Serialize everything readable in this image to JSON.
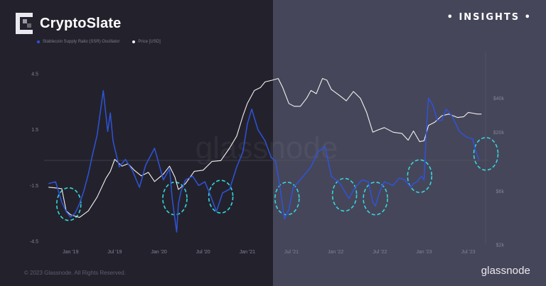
{
  "header": {
    "brand": "CryptoSlate",
    "badge": "• INSIGHTS •"
  },
  "footer": {
    "copyright": "© 2023 Glassnode. All Rights Reserved.",
    "brand": "glassnode"
  },
  "watermark": "glassnode",
  "colors": {
    "oscillator": "#2f53d8",
    "price": "#f2f2f2",
    "circle": "#35d6dc"
  },
  "chart_data": {
    "type": "line",
    "legend": [
      "Stablecoin Supply Ratio (SSR) Oscillator",
      "Price [USD]"
    ],
    "x_tick_labels": [
      "Jan '19",
      "Jul '19",
      "Jan '20",
      "Jul '20",
      "Jan '21",
      "Jul '21",
      "Jan '22",
      "Jul '22",
      "Jan '23",
      "Jul '23"
    ],
    "y_left_tick_labels": [
      "4.5",
      "1.5",
      "-1.5",
      "-4.5"
    ],
    "y_right_tick_labels": [
      "$40k",
      "$20k",
      "$6k",
      "$2k"
    ],
    "ylim_left": [
      -4.5,
      4.5
    ],
    "series": [
      {
        "name": "Stablecoin Supply Ratio (SSR) Oscillator",
        "axis": "left",
        "x": [
          2018.75,
          2018.83,
          2018.9,
          2018.95,
          2019.0,
          2019.05,
          2019.1,
          2019.15,
          2019.2,
          2019.25,
          2019.3,
          2019.37,
          2019.42,
          2019.45,
          2019.48,
          2019.5,
          2019.55,
          2019.62,
          2019.7,
          2019.78,
          2019.85,
          2019.95,
          2020.05,
          2020.12,
          2020.15,
          2020.2,
          2020.22,
          2020.25,
          2020.3,
          2020.38,
          2020.45,
          2020.52,
          2020.58,
          2020.65,
          2020.72,
          2020.8,
          2020.88,
          2020.95,
          2021.0,
          2021.05,
          2021.12,
          2021.2,
          2021.27,
          2021.32,
          2021.37,
          2021.42,
          2021.47,
          2021.52,
          2021.58,
          2021.65,
          2021.72,
          2021.8,
          2021.88,
          2021.95,
          2022.05,
          2022.1,
          2022.15,
          2022.22,
          2022.3,
          2022.37,
          2022.42,
          2022.45,
          2022.5,
          2022.55,
          2022.65,
          2022.72,
          2022.78,
          2022.85,
          2022.88,
          2022.92,
          2022.97,
          2023.0,
          2023.03,
          2023.05,
          2023.1,
          2023.15,
          2023.2,
          2023.25,
          2023.32,
          2023.4,
          2023.48,
          2023.55,
          2023.58,
          2023.62
        ],
        "y": [
          -1.4,
          -1.3,
          -2.4,
          -2.9,
          -3.2,
          -3.0,
          -2.5,
          -1.8,
          -0.9,
          0.2,
          1.2,
          3.6,
          1.4,
          2.4,
          0.9,
          0.5,
          -0.5,
          -0.1,
          -0.7,
          -1.6,
          -0.4,
          0.5,
          -1.2,
          -0.6,
          -2.2,
          -4.0,
          -2.5,
          -1.8,
          -1.2,
          -1.0,
          -1.5,
          -1.3,
          -2.0,
          -2.9,
          -1.9,
          -1.7,
          -0.5,
          0.3,
          1.8,
          2.6,
          1.5,
          0.9,
          0.0,
          -0.2,
          -1.6,
          -3.3,
          -2.8,
          -1.6,
          -1.3,
          -0.9,
          -0.5,
          0.3,
          0.6,
          -1.0,
          -1.4,
          -1.8,
          -2.2,
          -1.6,
          -1.2,
          -1.3,
          -2.4,
          -2.6,
          -1.8,
          -1.3,
          -1.5,
          -1.1,
          -1.2,
          -1.6,
          -1.4,
          -1.3,
          -1.0,
          -1.2,
          1.8,
          3.2,
          2.8,
          2.0,
          2.0,
          2.6,
          2.2,
          1.4,
          1.1,
          1.0,
          0.4,
          -0.1
        ]
      },
      {
        "name": "Price [USD]",
        "axis": "right",
        "x": [
          2018.75,
          2018.83,
          2018.9,
          2018.95,
          2019.0,
          2019.1,
          2019.2,
          2019.3,
          2019.4,
          2019.45,
          2019.5,
          2019.58,
          2019.65,
          2019.72,
          2019.8,
          2019.88,
          2019.95,
          2020.05,
          2020.12,
          2020.18,
          2020.22,
          2020.3,
          2020.4,
          2020.5,
          2020.6,
          2020.7,
          2020.8,
          2020.88,
          2020.95,
          2021.0,
          2021.08,
          2021.15,
          2021.2,
          2021.28,
          2021.35,
          2021.4,
          2021.47,
          2021.53,
          2021.6,
          2021.67,
          2021.72,
          2021.78,
          2021.85,
          2021.9,
          2021.95,
          2022.05,
          2022.12,
          2022.2,
          2022.28,
          2022.35,
          2022.42,
          2022.48,
          2022.55,
          2022.65,
          2022.75,
          2022.82,
          2022.88,
          2022.95,
          2023.0,
          2023.05,
          2023.12,
          2023.2,
          2023.28,
          2023.38,
          2023.45,
          2023.5,
          2023.55,
          2023.6,
          2023.65
        ],
        "y": [
          6500,
          6400,
          6300,
          4000,
          3700,
          3500,
          4000,
          5300,
          7800,
          9000,
          11500,
          10000,
          10500,
          9200,
          8200,
          8800,
          7300,
          8500,
          10000,
          8000,
          6200,
          7000,
          9000,
          9200,
          11000,
          11200,
          14500,
          18500,
          28000,
          36000,
          47000,
          50000,
          56000,
          58000,
          60000,
          50000,
          36000,
          34000,
          34000,
          40000,
          47000,
          44000,
          60000,
          58000,
          48000,
          42000,
          38000,
          46000,
          40000,
          30000,
          20000,
          21000,
          22000,
          20000,
          19500,
          17000,
          20500,
          16500,
          16800,
          23000,
          24500,
          28000,
          29000,
          27000,
          27500,
          30000,
          29500,
          29000,
          29000
        ]
      }
    ],
    "annotations": [
      {
        "shape": "dashed-ellipse",
        "x": 2018.98,
        "y": -2.5
      },
      {
        "shape": "dashed-ellipse",
        "x": 2020.18,
        "y": -2.2
      },
      {
        "shape": "dashed-ellipse",
        "x": 2020.7,
        "y": -2.1
      },
      {
        "shape": "dashed-ellipse",
        "x": 2021.45,
        "y": -2.2
      },
      {
        "shape": "dashed-ellipse",
        "x": 2022.1,
        "y": -2.0
      },
      {
        "shape": "dashed-ellipse",
        "x": 2022.45,
        "y": -2.2
      },
      {
        "shape": "dashed-ellipse",
        "x": 2022.95,
        "y": -1.0
      },
      {
        "shape": "dashed-ellipse",
        "x": 2023.7,
        "y": 0.2
      }
    ]
  }
}
